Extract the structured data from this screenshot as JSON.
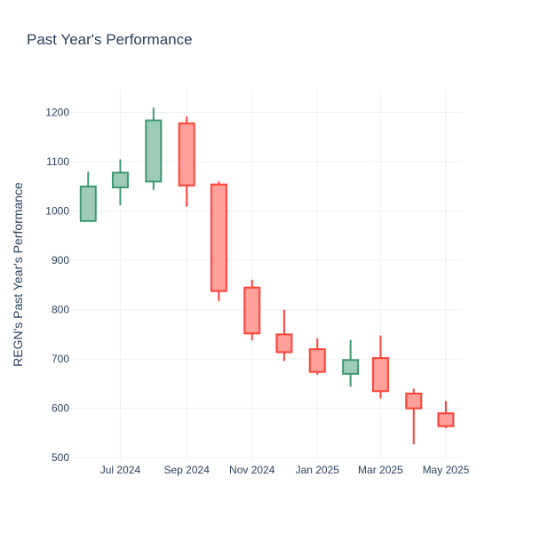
{
  "chart_data": {
    "type": "candlestick",
    "title": "Past Year's Performance",
    "xlabel": "",
    "ylabel": "REGN's Past Year's Performance",
    "ylim": [
      495,
      1248
    ],
    "yticks": [
      500,
      600,
      700,
      800,
      900,
      1000,
      1100,
      1200
    ],
    "x_ticks": [
      {
        "date": "2024-07-01",
        "label": "Jul 2024"
      },
      {
        "date": "2024-09-01",
        "label": "Sep 2024"
      },
      {
        "date": "2024-11-01",
        "label": "Nov 2024"
      },
      {
        "date": "2025-01-01",
        "label": "Jan 2025"
      },
      {
        "date": "2025-03-01",
        "label": "Mar 2025"
      },
      {
        "date": "2025-05-01",
        "label": "May 2025"
      }
    ],
    "xlim": [
      "2024-05-16",
      "2025-05-16"
    ],
    "grid": true,
    "increasing_color": "#3d9970",
    "increasing_fill": "#9ecbb7",
    "decreasing_color": "#ff4136",
    "decreasing_fill": "#ffa09a",
    "candles": [
      {
        "date": "2024-06-01",
        "open": 980,
        "high": 1080,
        "low": 980,
        "close": 1050
      },
      {
        "date": "2024-07-01",
        "open": 1048,
        "high": 1105,
        "low": 1012,
        "close": 1078
      },
      {
        "date": "2024-08-01",
        "open": 1060,
        "high": 1210,
        "low": 1043,
        "close": 1184
      },
      {
        "date": "2024-09-01",
        "open": 1178,
        "high": 1192,
        "low": 1009,
        "close": 1052
      },
      {
        "date": "2024-10-01",
        "open": 1054,
        "high": 1060,
        "low": 818,
        "close": 838
      },
      {
        "date": "2024-11-01",
        "open": 845,
        "high": 861,
        "low": 738,
        "close": 752
      },
      {
        "date": "2024-12-01",
        "open": 750,
        "high": 800,
        "low": 696,
        "close": 714
      },
      {
        "date": "2025-01-01",
        "open": 720,
        "high": 742,
        "low": 668,
        "close": 674
      },
      {
        "date": "2025-02-01",
        "open": 670,
        "high": 739,
        "low": 644,
        "close": 698
      },
      {
        "date": "2025-03-01",
        "open": 702,
        "high": 748,
        "low": 620,
        "close": 635
      },
      {
        "date": "2025-04-01",
        "open": 630,
        "high": 640,
        "low": 527,
        "close": 600
      },
      {
        "date": "2025-05-01",
        "open": 590,
        "high": 615,
        "low": 560,
        "close": 564
      }
    ]
  }
}
